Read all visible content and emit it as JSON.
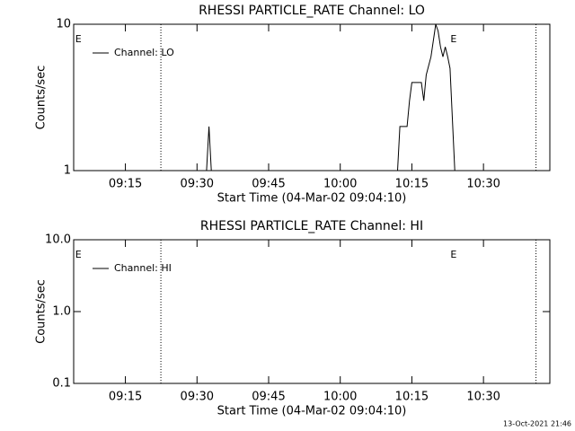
{
  "chart_data": [
    {
      "type": "line",
      "title": "RHESSI PARTICLE_RATE Channel: LO",
      "x_label": "Start Time (04-Mar-02 09:04:10)",
      "y_label": "Counts/sec",
      "log_scale_y": true,
      "xlim": [
        "09:04:10",
        "10:43:54"
      ],
      "xticks": [
        "09:15",
        "09:30",
        "09:45",
        "10:00",
        "10:15",
        "10:30"
      ],
      "ylim": [
        1,
        10
      ],
      "yticks": [
        1,
        10
      ],
      "legend": "upper left",
      "dotted_lines": [
        "09:22:26",
        "10:41:00"
      ],
      "flags": [
        {
          "time": "09:04:30",
          "label": "E"
        },
        {
          "time": "10:23:05",
          "label": "E"
        }
      ],
      "series": [
        {
          "name": "Channel: LO",
          "color": "#000000",
          "x": [
            "09:05",
            "09:32",
            "09:32:30",
            "09:33",
            "10:12",
            "10:12:30",
            "10:14",
            "10:14:30",
            "10:15",
            "10:16",
            "10:17",
            "10:17:30",
            "10:18",
            "10:19",
            "10:20",
            "10:20:30",
            "10:21",
            "10:21:30",
            "10:22",
            "10:22:30",
            "10:23",
            "10:24",
            "10:43"
          ],
          "values": [
            1,
            1,
            2,
            1,
            1,
            2,
            2,
            3,
            4,
            4,
            4,
            3,
            4.5,
            6,
            10,
            9,
            7,
            6,
            7,
            6,
            5,
            1,
            1
          ]
        }
      ]
    },
    {
      "type": "line",
      "title": "RHESSI PARTICLE_RATE Channel: HI",
      "x_label": "Start Time (04-Mar-02 09:04:10)",
      "y_label": "Counts/sec",
      "log_scale_y": true,
      "xlim": [
        "09:04:10",
        "10:43:54"
      ],
      "xticks": [
        "09:15",
        "09:30",
        "09:45",
        "10:00",
        "10:15",
        "10:30"
      ],
      "ylim": [
        0.1,
        10
      ],
      "yticks": [
        {
          "value": 0.1,
          "label": "0.1"
        },
        {
          "value": 1,
          "label": "1.0"
        },
        {
          "value": 10,
          "label": "10.0"
        }
      ],
      "legend": "upper left",
      "dotted_lines": [
        "09:22:26",
        "10:41:00"
      ],
      "flags": [
        {
          "time": "09:04:30",
          "label": "E"
        },
        {
          "time": "10:23:05",
          "label": "E"
        }
      ],
      "series": [
        {
          "name": "Channel: HI",
          "color": "#000000",
          "x": [],
          "values": []
        }
      ]
    }
  ],
  "footer": "13-Oct-2021 21:46"
}
